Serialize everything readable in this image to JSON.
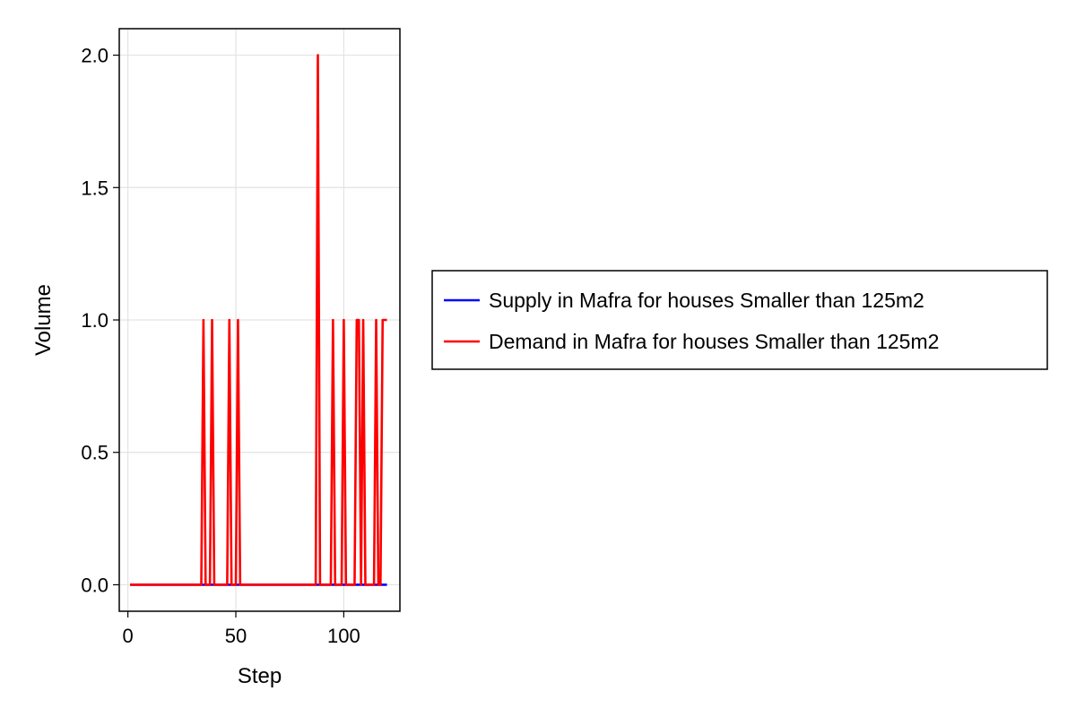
{
  "chart_data": {
    "type": "line",
    "xlabel": "Step",
    "ylabel": "Volume",
    "xlim": [
      -4,
      126
    ],
    "ylim": [
      -0.1,
      2.1
    ],
    "xticks": [
      0,
      50,
      100
    ],
    "xtick_labels": [
      "0",
      "50",
      "100"
    ],
    "yticks": [
      0.0,
      0.5,
      1.0,
      1.5,
      2.0
    ],
    "ytick_labels": [
      "0.0",
      "0.5",
      "1.0",
      "1.5",
      "2.0"
    ],
    "grid": true,
    "legend_position": "right",
    "series": [
      {
        "name": "Supply in Mafra for houses Smaller than 125m2",
        "color": "#0000ff",
        "points": [
          [
            1,
            0
          ],
          [
            120,
            0
          ]
        ]
      },
      {
        "name": "Demand in Mafra for houses Smaller than 125m2",
        "color": "#ff0000",
        "points": [
          [
            1,
            0
          ],
          [
            34,
            0
          ],
          [
            35,
            1
          ],
          [
            36,
            0
          ],
          [
            38,
            0
          ],
          [
            39,
            1
          ],
          [
            40,
            0
          ],
          [
            46,
            0
          ],
          [
            47,
            1
          ],
          [
            48,
            0
          ],
          [
            50,
            0
          ],
          [
            51,
            1
          ],
          [
            52,
            0
          ],
          [
            87,
            0
          ],
          [
            88,
            2
          ],
          [
            89,
            0
          ],
          [
            94,
            0
          ],
          [
            95,
            1
          ],
          [
            96,
            0
          ],
          [
            99,
            0
          ],
          [
            100,
            1
          ],
          [
            101,
            0
          ],
          [
            105,
            0
          ],
          [
            106,
            1
          ],
          [
            107,
            1
          ],
          [
            108,
            0
          ],
          [
            109,
            1
          ],
          [
            110,
            0
          ],
          [
            114,
            0
          ],
          [
            115,
            1
          ],
          [
            116,
            0
          ],
          [
            117,
            0
          ],
          [
            118,
            1
          ],
          [
            120,
            1
          ]
        ]
      }
    ]
  }
}
